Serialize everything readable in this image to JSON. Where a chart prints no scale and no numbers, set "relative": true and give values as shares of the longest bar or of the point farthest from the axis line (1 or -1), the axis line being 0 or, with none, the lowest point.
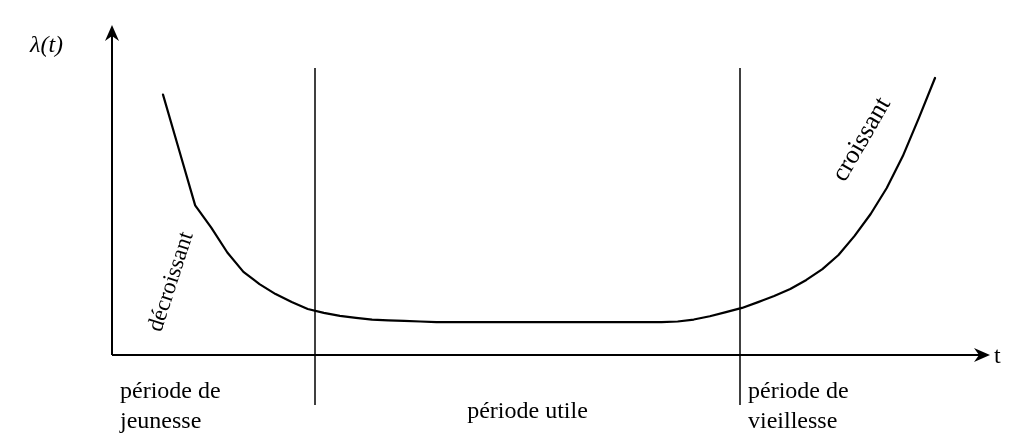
{
  "chart_data": {
    "type": "line",
    "xlabel": "t",
    "ylabel": "λ(t)",
    "relative": true,
    "categories": [
      null,
      null,
      null,
      null,
      null,
      null,
      null,
      null,
      null,
      null,
      null,
      null,
      null,
      null,
      null,
      null,
      null,
      null,
      null,
      null,
      null,
      null,
      null,
      null,
      null,
      null,
      null,
      null,
      null,
      null,
      null,
      null,
      null,
      null,
      null,
      null,
      null,
      null,
      null,
      null,
      null,
      null,
      null,
      null,
      null,
      null,
      null,
      null,
      null
    ],
    "series": [
      {
        "color": "#000000",
        "values": [
          0.94,
          0.74,
          0.54,
          0.46,
          0.37,
          0.3,
          0.256,
          0.22,
          0.191,
          0.166,
          0.152,
          0.141,
          0.134,
          0.128,
          0.125,
          0.123,
          0.121,
          0.119,
          0.119,
          0.119,
          0.119,
          0.119,
          0.119,
          0.119,
          0.119,
          0.119,
          0.119,
          0.119,
          0.119,
          0.119,
          0.119,
          0.119,
          0.121,
          0.128,
          0.14,
          0.155,
          0.17,
          0.191,
          0.213,
          0.238,
          0.271,
          0.31,
          0.361,
          0.43,
          0.509,
          0.603,
          0.718,
          0.856,
          1.0
        ]
      }
    ],
    "annotations": [
      "décroissant",
      "croissant",
      "période de jeunesse",
      "période utile",
      "période de vieillesse"
    ]
  }
}
